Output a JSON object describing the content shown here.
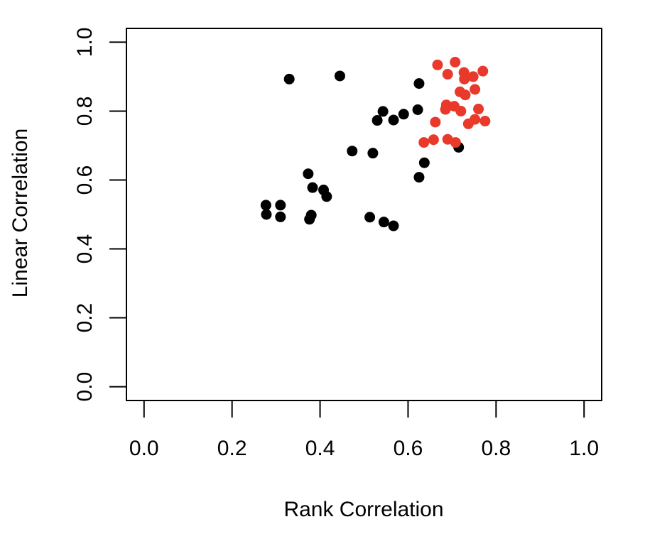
{
  "chart_data": {
    "type": "scatter",
    "title": "",
    "xlabel": "Rank Correlation",
    "ylabel": "Linear Correlation",
    "xlim": [
      -0.04,
      1.04
    ],
    "ylim": [
      -0.04,
      1.04
    ],
    "xticks": [
      "0.0",
      "0.2",
      "0.4",
      "0.6",
      "0.8",
      "1.0"
    ],
    "yticks": [
      "0.0",
      "0.2",
      "0.4",
      "0.6",
      "0.8",
      "1.0"
    ],
    "grid": false,
    "legend": "none",
    "series": [
      {
        "color": "#000000",
        "points": [
          [
            0.33,
            0.893
          ],
          [
            0.445,
            0.902
          ],
          [
            0.625,
            0.88
          ],
          [
            0.543,
            0.799
          ],
          [
            0.53,
            0.773
          ],
          [
            0.567,
            0.774
          ],
          [
            0.59,
            0.791
          ],
          [
            0.622,
            0.804
          ],
          [
            0.473,
            0.684
          ],
          [
            0.52,
            0.678
          ],
          [
            0.715,
            0.695
          ],
          [
            0.637,
            0.65
          ],
          [
            0.625,
            0.608
          ],
          [
            0.373,
            0.618
          ],
          [
            0.383,
            0.578
          ],
          [
            0.408,
            0.571
          ],
          [
            0.415,
            0.552
          ],
          [
            0.277,
            0.527
          ],
          [
            0.31,
            0.527
          ],
          [
            0.278,
            0.5
          ],
          [
            0.31,
            0.493
          ],
          [
            0.38,
            0.498
          ],
          [
            0.376,
            0.486
          ],
          [
            0.513,
            0.492
          ],
          [
            0.545,
            0.478
          ],
          [
            0.567,
            0.467
          ]
        ]
      },
      {
        "color": "#e8392a",
        "points": [
          [
            0.667,
            0.934
          ],
          [
            0.707,
            0.942
          ],
          [
            0.69,
            0.907
          ],
          [
            0.727,
            0.912
          ],
          [
            0.77,
            0.916
          ],
          [
            0.728,
            0.893
          ],
          [
            0.748,
            0.9
          ],
          [
            0.718,
            0.856
          ],
          [
            0.73,
            0.847
          ],
          [
            0.752,
            0.863
          ],
          [
            0.687,
            0.818
          ],
          [
            0.705,
            0.814
          ],
          [
            0.685,
            0.805
          ],
          [
            0.72,
            0.8
          ],
          [
            0.76,
            0.806
          ],
          [
            0.662,
            0.768
          ],
          [
            0.737,
            0.763
          ],
          [
            0.752,
            0.776
          ],
          [
            0.775,
            0.771
          ],
          [
            0.658,
            0.717
          ],
          [
            0.636,
            0.709
          ],
          [
            0.69,
            0.718
          ],
          [
            0.708,
            0.709
          ]
        ]
      }
    ]
  }
}
